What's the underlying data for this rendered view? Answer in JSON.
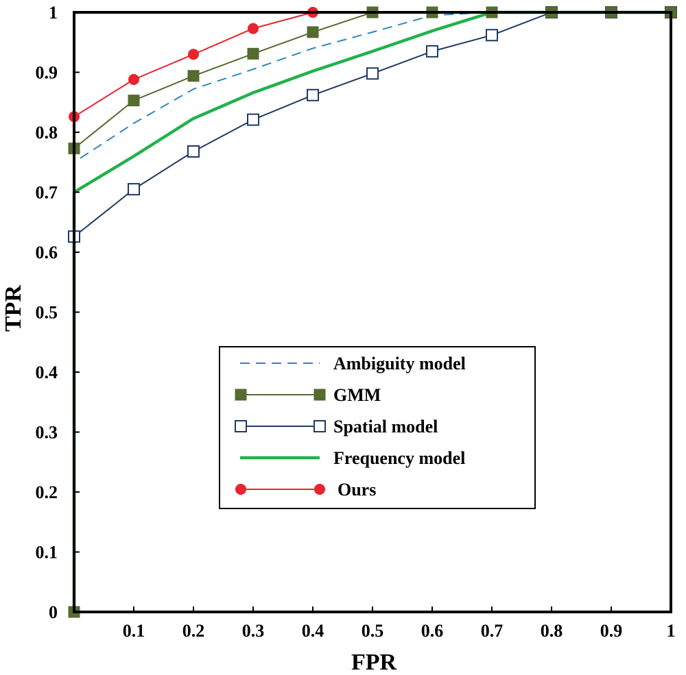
{
  "chart_data": {
    "type": "line",
    "title": "",
    "xlabel": "FPR",
    "ylabel": "TPR",
    "xlim": [
      0,
      1
    ],
    "ylim": [
      0,
      1
    ],
    "grid": false,
    "legend_position": "center-right",
    "x_ticks": [
      "0.1",
      "0.2",
      "0.3",
      "0.4",
      "0.5",
      "0.6",
      "0.7",
      "0.8",
      "0.9",
      "1"
    ],
    "y_ticks": [
      "0",
      "0.1",
      "0.2",
      "0.3",
      "0.4",
      "0.5",
      "0.6",
      "0.7",
      "0.8",
      "0.9",
      "1"
    ],
    "series": [
      {
        "name": "Ambiguity model",
        "color": "#2e86c1",
        "style": "dashed",
        "marker": "none",
        "x": [
          0.0,
          0.0,
          0.1,
          0.2,
          0.3,
          0.4,
          0.5,
          0.6,
          0.7,
          0.8,
          0.9,
          1.0
        ],
        "y": [
          0.0,
          0.75,
          0.815,
          0.872,
          0.905,
          0.94,
          0.967,
          0.995,
          1.0,
          1.0,
          1.0,
          1.0
        ]
      },
      {
        "name": "GMM",
        "color": "#556b2f",
        "style": "solid",
        "marker": "filled-square",
        "x": [
          0.0,
          0.0,
          0.1,
          0.2,
          0.3,
          0.4,
          0.5,
          0.6,
          0.7,
          0.8,
          0.9,
          1.0
        ],
        "y": [
          0.0,
          0.773,
          0.853,
          0.894,
          0.931,
          0.967,
          1.0,
          1.0,
          1.0,
          1.0,
          1.0,
          1.0
        ]
      },
      {
        "name": "Spatial model",
        "color": "#1f3864",
        "style": "solid",
        "marker": "open-square",
        "x": [
          0.0,
          0.0,
          0.1,
          0.2,
          0.3,
          0.4,
          0.5,
          0.6,
          0.7,
          0.8,
          0.9,
          1.0
        ],
        "y": [
          0.0,
          0.626,
          0.705,
          0.768,
          0.821,
          0.862,
          0.898,
          0.935,
          0.962,
          1.0,
          1.0,
          1.0
        ]
      },
      {
        "name": "Frequency model",
        "color": "#22b14c",
        "style": "solid-thick",
        "marker": "none",
        "x": [
          0.0,
          0.0,
          0.1,
          0.2,
          0.3,
          0.4,
          0.5,
          0.6,
          0.7,
          0.8,
          0.9,
          1.0
        ],
        "y": [
          0.0,
          0.7,
          0.76,
          0.823,
          0.866,
          0.902,
          0.935,
          0.969,
          1.0,
          1.0,
          1.0,
          1.0
        ]
      },
      {
        "name": "Ours",
        "color": "#e8242c",
        "style": "solid",
        "marker": "filled-circle",
        "x": [
          0.0,
          0.0,
          0.1,
          0.2,
          0.3,
          0.4
        ],
        "y": [
          0.0,
          0.826,
          0.888,
          0.93,
          0.973,
          1.0
        ]
      }
    ]
  }
}
